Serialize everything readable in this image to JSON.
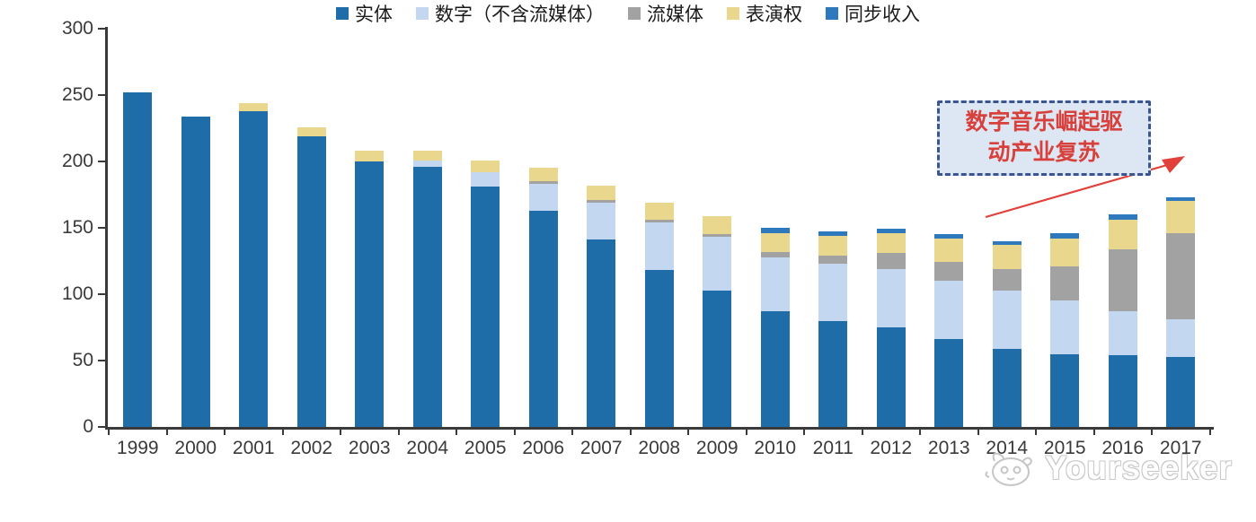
{
  "chart_data": {
    "type": "bar",
    "stacked": true,
    "title": "",
    "xlabel": "",
    "ylabel": "",
    "categories": [
      "1999",
      "2000",
      "2001",
      "2002",
      "2003",
      "2004",
      "2005",
      "2006",
      "2007",
      "2008",
      "2009",
      "2010",
      "2011",
      "2012",
      "2013",
      "2014",
      "2015",
      "2016",
      "2017"
    ],
    "series": [
      {
        "name": "实体",
        "color": "#1e6da8",
        "values": [
          252,
          234,
          238,
          219,
          200,
          196,
          181,
          163,
          141,
          118,
          103,
          87,
          80,
          75,
          66,
          59,
          55,
          54,
          53
        ]
      },
      {
        "name": "数字（不含流媒体）",
        "color": "#c3d8f0",
        "values": [
          0,
          0,
          0,
          0,
          0,
          5,
          11,
          20,
          28,
          36,
          40,
          41,
          43,
          44,
          44,
          44,
          40,
          33,
          28
        ]
      },
      {
        "name": "流媒体",
        "color": "#a2a2a2",
        "values": [
          0,
          0,
          0,
          0,
          0,
          0,
          0,
          2,
          2,
          2,
          2,
          4,
          6,
          12,
          14,
          16,
          26,
          47,
          65
        ]
      },
      {
        "name": "表演权",
        "color": "#e9d78e",
        "values": [
          0,
          0,
          6,
          7,
          8,
          7,
          9,
          10,
          11,
          13,
          14,
          14,
          15,
          15,
          18,
          18,
          21,
          22,
          24
        ]
      },
      {
        "name": "同步收入",
        "color": "#2e78bd",
        "values": [
          0,
          0,
          0,
          0,
          0,
          0,
          0,
          0,
          0,
          0,
          0,
          4,
          3,
          3,
          3,
          3,
          4,
          4,
          3
        ]
      }
    ],
    "totals": [
      252,
      234,
      244,
      226,
      208,
      208,
      201,
      195,
      182,
      169,
      159,
      150,
      147,
      149,
      145,
      140,
      146,
      160,
      173
    ],
    "ylim": [
      0,
      300
    ],
    "yticks": [
      0,
      50,
      100,
      150,
      200,
      250,
      300
    ],
    "grid": false,
    "legend_position": "bottom"
  },
  "annotation": {
    "line1": "数字音乐崛起驱",
    "line2": "动产业复苏"
  },
  "watermark": {
    "text": "Yourseeker"
  },
  "colors": {
    "axis": "#3a3a3a",
    "annotation_border": "#3a5590",
    "annotation_bg": "#dde7f3",
    "annotation_text": "#d8403c",
    "arrow": "#e2403a",
    "watermark_gray": "#c6c6c6"
  }
}
